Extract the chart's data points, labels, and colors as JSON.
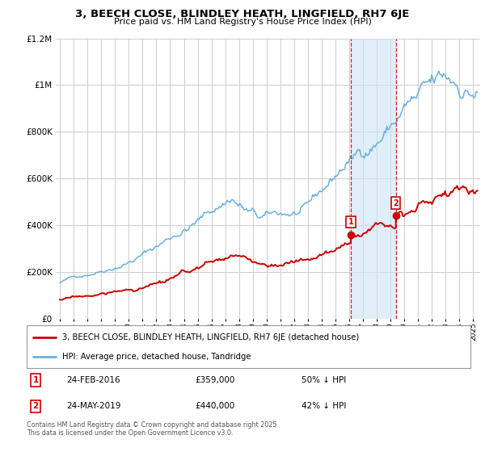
{
  "title": "3, BEECH CLOSE, BLINDLEY HEATH, LINGFIELD, RH7 6JE",
  "subtitle": "Price paid vs. HM Land Registry's House Price Index (HPI)",
  "hpi_label": "HPI: Average price, detached house, Tandridge",
  "price_label": "3, BEECH CLOSE, BLINDLEY HEATH, LINGFIELD, RH7 6JE (detached house)",
  "footer": "Contains HM Land Registry data © Crown copyright and database right 2025.\nThis data is licensed under the Open Government Licence v3.0.",
  "hpi_color": "#6ab0e0",
  "price_color": "#cc0000",
  "marker1_date": "24-FEB-2016",
  "marker1_price": "£359,000",
  "marker1_hpi": "50% ↓ HPI",
  "marker1_year": 2016.12,
  "marker2_date": "24-MAY-2019",
  "marker2_price": "£440,000",
  "marker2_hpi": "42% ↓ HPI",
  "marker2_year": 2019.38,
  "ylim_max": 1200000,
  "xlim_start": 1994.7,
  "xlim_end": 2025.5,
  "background_color": "#ffffff",
  "plot_bg_color": "#ffffff",
  "grid_color": "#cccccc",
  "shade_color": "#cce4f5"
}
